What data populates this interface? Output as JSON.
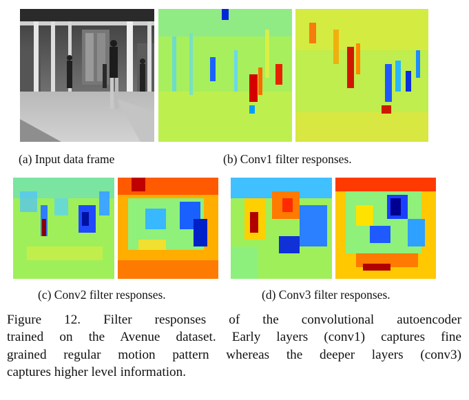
{
  "panels": {
    "a": {
      "caption": "(a) Input data frame"
    },
    "b": {
      "caption": "(b) Conv1 filter responses."
    },
    "c": {
      "caption": "(c) Conv2 filter responses."
    },
    "d": {
      "caption": "(d) Conv3 filter responses."
    }
  },
  "figure_caption": {
    "lines": [
      "Figure 12. Filter responses of the convolutional autoencoder",
      "trained on the Avenue dataset. Early layers (conv1) captures fine",
      "grained regular motion pattern whereas the deeper layers (conv3)",
      "captures higher level information."
    ]
  },
  "colors": {
    "jet_low": "#00008f",
    "jet_mid": "#7fff7f",
    "jet_high": "#800000",
    "background_response": "#9fef5a"
  }
}
